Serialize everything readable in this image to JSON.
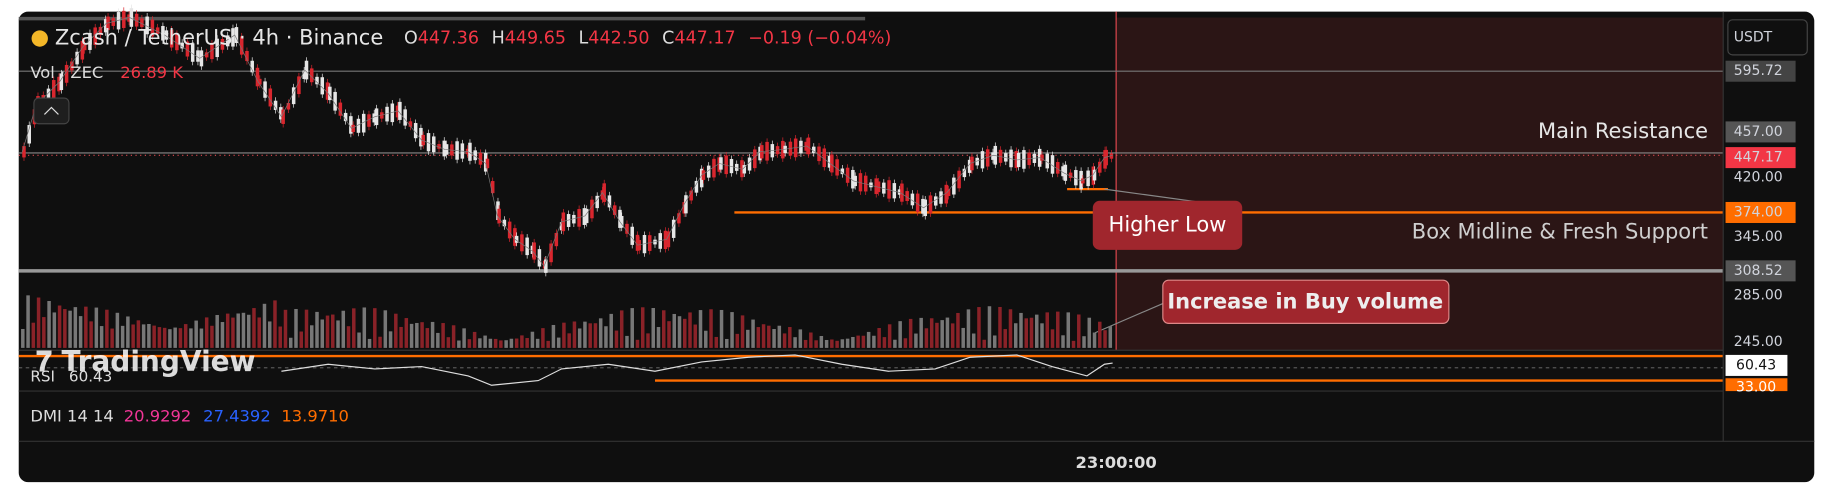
{
  "header": {
    "symbol": "Zcash / TetherUS · 4h · Binance",
    "open_label": "O",
    "open": "447.36",
    "high_label": "H",
    "high": "449.65",
    "low_label": "L",
    "low": "442.50",
    "close_label": "C",
    "close": "447.17",
    "change": "−0.19 (−0.04%)"
  },
  "volume": {
    "label": "Vol · ZEC",
    "value": "26.89 K"
  },
  "rsi": {
    "label": "RSI",
    "value": "60.43"
  },
  "dmi": {
    "label": "DMI 14 14",
    "values": [
      "20.9292",
      "27.4392",
      "13.9710"
    ]
  },
  "price_axis": {
    "currency": "USDT",
    "labels": [
      "595.72",
      "457.00",
      "447.17",
      "420.00",
      "374.00",
      "345.00",
      "308.52",
      "285.00",
      "245.00"
    ],
    "rsi_labels": [
      "60.43",
      "33.00"
    ]
  },
  "annotations": {
    "main_resistance": "Main Resistance",
    "box_midline": "Box Midline & Fresh Support",
    "higher_low": "Higher Low",
    "buy_volume": "Increase in Buy volume"
  },
  "time_axis": {
    "label": "23:00:00"
  },
  "watermark": "TradingView"
}
